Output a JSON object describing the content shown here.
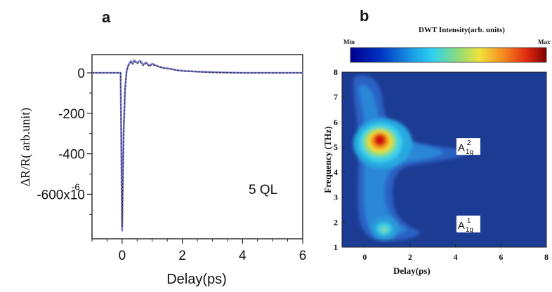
{
  "chart_data": [
    {
      "panel_label": "a",
      "type": "line",
      "xlabel": "Delay(ps)",
      "ylabel": "ΔR/R( arb.unit)",
      "xlim": [
        -1.0,
        6.0
      ],
      "ylim": [
        -820,
        90
      ],
      "x_ticks": [
        0,
        2,
        4,
        6
      ],
      "y_ticks": [
        {
          "value": 0,
          "label": "0"
        },
        {
          "value": -200,
          "label": "-200"
        },
        {
          "value": -400,
          "label": "-400"
        },
        {
          "value": -600,
          "label": "-600x10"
        }
      ],
      "y_exponent": "-6",
      "annotation": "5 QL",
      "grid": false,
      "series": [
        {
          "role": "data",
          "color": "#7f7fe0",
          "x": [
            -1.0,
            -0.05,
            0.0,
            0.05,
            0.1,
            0.15,
            0.2,
            0.25,
            0.3,
            0.35,
            0.4,
            0.5,
            0.6,
            0.7,
            0.8,
            0.9,
            1.0,
            1.2,
            1.4,
            1.6,
            1.8,
            2.0,
            2.5,
            3.0,
            3.5,
            4.0,
            5.0,
            6.0
          ],
          "y": [
            0,
            0,
            -780,
            -300,
            -80,
            10,
            35,
            50,
            58,
            45,
            62,
            50,
            60,
            40,
            52,
            35,
            45,
            32,
            24,
            20,
            14,
            10,
            6,
            3,
            1,
            0,
            0,
            0
          ]
        },
        {
          "role": "fit",
          "color": "#2f2f2f",
          "dash": true,
          "x": [
            -1.0,
            -0.05,
            0.0,
            0.05,
            0.1,
            0.15,
            0.2,
            0.25,
            0.3,
            0.35,
            0.4,
            0.5,
            0.6,
            0.7,
            0.8,
            0.9,
            1.0,
            1.2,
            1.4,
            1.6,
            1.8,
            2.0,
            2.5,
            3.0,
            3.5,
            4.0,
            5.0,
            6.0
          ],
          "y": [
            0,
            0,
            -760,
            -290,
            -75,
            8,
            30,
            45,
            52,
            42,
            56,
            46,
            54,
            36,
            47,
            32,
            41,
            29,
            22,
            18,
            13,
            9,
            5,
            2,
            1,
            0,
            0,
            0
          ]
        }
      ]
    },
    {
      "panel_label": "b",
      "type": "heatmap",
      "title": "DWT Intensity(arb. units)",
      "colorbar_min_label": "Min",
      "colorbar_max_label": "Max",
      "xlabel": "Delay(ps)",
      "ylabel": "Frequency (THz)",
      "xlim": [
        -1.0,
        8.0
      ],
      "ylim": [
        1,
        8
      ],
      "x_ticks": [
        0,
        2,
        4,
        6,
        8
      ],
      "y_ticks": [
        1,
        2,
        3,
        4,
        5,
        6,
        7,
        8
      ],
      "annotations": [
        {
          "text": "A",
          "sup": "2",
          "sub": "1g",
          "x": 4.1,
          "y": 5.0
        },
        {
          "text": "A",
          "sup": "1",
          "sub": "1g",
          "x": 4.1,
          "y": 1.9
        }
      ],
      "colors": {
        "background": "#1c3c94",
        "low": "#2a66c8",
        "mid": "#22b4e0",
        "high": "#e8d830",
        "peak": "#cc1010"
      },
      "features": [
        {
          "mode": "A1g(2)",
          "center_delay_ps": 0.4,
          "center_freq_THz": 5.2,
          "level": "max"
        },
        {
          "mode": "A1g(1)",
          "center_delay_ps": 0.6,
          "center_freq_THz": 1.7,
          "level": "medium"
        }
      ]
    }
  ]
}
